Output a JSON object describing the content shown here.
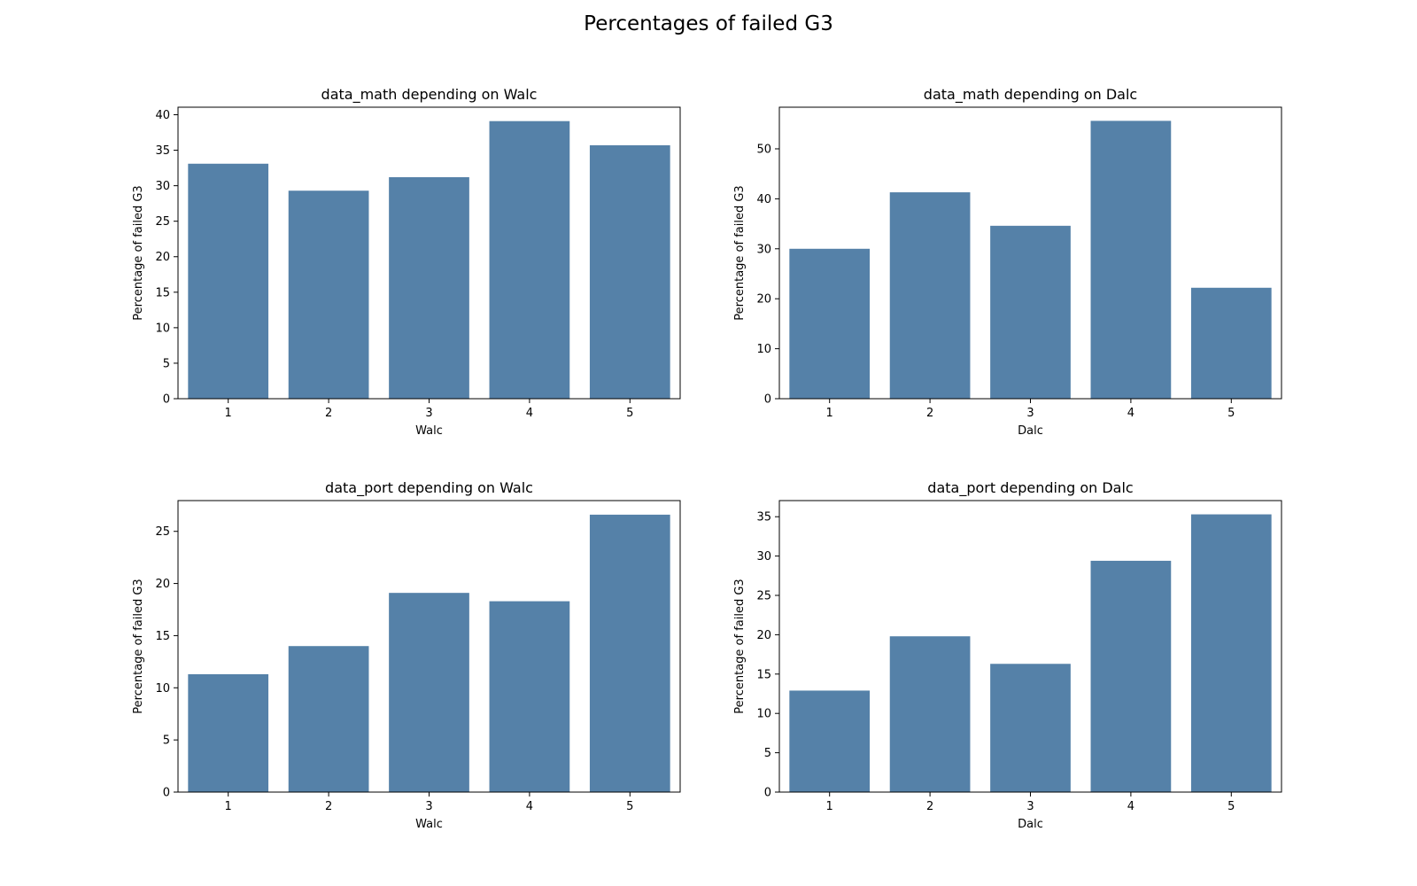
{
  "figure": {
    "title": "Percentages of failed G3"
  },
  "style": {
    "bar_color": "#5581a8",
    "frame_color": "#000000"
  },
  "chart_data": [
    {
      "type": "bar",
      "title": "data_math depending on Walc",
      "xlabel": "Walc",
      "ylabel": "Percentage of failed G3",
      "categories": [
        "1",
        "2",
        "3",
        "4",
        "5"
      ],
      "values": [
        33.1,
        29.3,
        31.2,
        39.1,
        35.7
      ],
      "ylim": [
        0,
        41.06
      ],
      "yticks": [
        0,
        5,
        10,
        15,
        20,
        25,
        30,
        35,
        40
      ],
      "grid": false
    },
    {
      "type": "bar",
      "title": "data_math depending on Dalc",
      "xlabel": "Dalc",
      "ylabel": "Percentage of failed G3",
      "categories": [
        "1",
        "2",
        "3",
        "4",
        "5"
      ],
      "values": [
        30.0,
        41.3,
        34.6,
        55.6,
        22.2
      ],
      "ylim": [
        0,
        58.33
      ],
      "yticks": [
        0,
        10,
        20,
        30,
        40,
        50
      ],
      "grid": false
    },
    {
      "type": "bar",
      "title": "data_port depending on Walc",
      "xlabel": "Walc",
      "ylabel": "Percentage of failed G3",
      "categories": [
        "1",
        "2",
        "3",
        "4",
        "5"
      ],
      "values": [
        11.3,
        14.0,
        19.1,
        18.3,
        26.6
      ],
      "ylim": [
        0,
        27.95
      ],
      "yticks": [
        0,
        5,
        10,
        15,
        20,
        25
      ],
      "grid": false
    },
    {
      "type": "bar",
      "title": "data_port depending on Dalc",
      "xlabel": "Dalc",
      "ylabel": "Percentage of failed G3",
      "categories": [
        "1",
        "2",
        "3",
        "4",
        "5"
      ],
      "values": [
        12.9,
        19.8,
        16.3,
        29.4,
        35.3
      ],
      "ylim": [
        0,
        37.05
      ],
      "yticks": [
        0,
        5,
        10,
        15,
        20,
        25,
        30,
        35
      ],
      "grid": false
    }
  ]
}
